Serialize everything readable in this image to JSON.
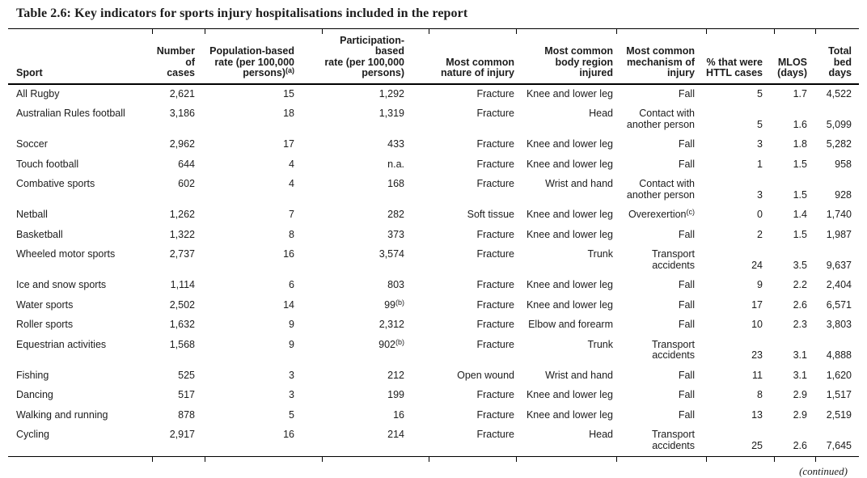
{
  "title": "Table 2.6: Key indicators for sports injury hospitalisations included in the report",
  "continued_note": "(continued)",
  "colors": {
    "background": "#ffffff",
    "text": "#1c1c1c",
    "rule": "#000000"
  },
  "table": {
    "columns": [
      {
        "id": "sport",
        "label": "Sport"
      },
      {
        "id": "cases",
        "label": "Number\nof\ncases"
      },
      {
        "id": "population-rate",
        "label": "Population-based\nrate (per 100,000\npersons)^(a)"
      },
      {
        "id": "participation-rate",
        "label": "Participation-based\nrate (per 100,000\npersons)"
      },
      {
        "id": "nature",
        "label": "Most common\nnature of injury"
      },
      {
        "id": "body-region",
        "label": "Most common\nbody region\ninjured"
      },
      {
        "id": "mechanism",
        "label": "Most common\nmechanism of\ninjury"
      },
      {
        "id": "httl-pct",
        "label": "% that were\nHTTL cases"
      },
      {
        "id": "mlos",
        "label": "MLOS\n(days)"
      },
      {
        "id": "total-bed-days",
        "label": "Total\nbed\ndays"
      }
    ],
    "rows": [
      [
        "All Rugby",
        "2,621",
        "15",
        "1,292",
        "Fracture",
        "Knee and lower leg",
        "Fall",
        "5",
        "1.7",
        "4,522"
      ],
      [
        "Australian Rules football",
        "3,186",
        "18",
        "1,319",
        "Fracture",
        "Head",
        "Contact with\nanother person",
        "5",
        "1.6",
        "5,099"
      ],
      [
        "Soccer",
        "2,962",
        "17",
        "433",
        "Fracture",
        "Knee and lower leg",
        "Fall",
        "3",
        "1.8",
        "5,282"
      ],
      [
        "Touch football",
        "644",
        "4",
        "n.a.",
        "Fracture",
        "Knee and lower leg",
        "Fall",
        "1",
        "1.5",
        "958"
      ],
      [
        "Combative sports",
        "602",
        "4",
        "168",
        "Fracture",
        "Wrist and hand",
        "Contact with\nanother person",
        "3",
        "1.5",
        "928"
      ],
      [
        "Netball",
        "1,262",
        "7",
        "282",
        "Soft tissue",
        "Knee and lower leg",
        "Overexertion^(c)",
        "0",
        "1.4",
        "1,740"
      ],
      [
        "Basketball",
        "1,322",
        "8",
        "373",
        "Fracture",
        "Knee and lower leg",
        "Fall",
        "2",
        "1.5",
        "1,987"
      ],
      [
        "Wheeled motor sports",
        "2,737",
        "16",
        "3,574",
        "Fracture",
        "Trunk",
        "Transport\naccidents",
        "24",
        "3.5",
        "9,637"
      ],
      [
        "Ice and snow sports",
        "1,114",
        "6",
        "803",
        "Fracture",
        "Knee and lower leg",
        "Fall",
        "9",
        "2.2",
        "2,404"
      ],
      [
        "Water sports",
        "2,502",
        "14",
        "99^(b)",
        "Fracture",
        "Knee and lower leg",
        "Fall",
        "17",
        "2.6",
        "6,571"
      ],
      [
        "Roller sports",
        "1,632",
        "9",
        "2,312",
        "Fracture",
        "Elbow and forearm",
        "Fall",
        "10",
        "2.3",
        "3,803"
      ],
      [
        "Equestrian activities",
        "1,568",
        "9",
        "902^(b)",
        "Fracture",
        "Trunk",
        "Transport\naccidents",
        "23",
        "3.1",
        "4,888"
      ],
      [
        "Fishing",
        "525",
        "3",
        "212",
        "Open wound",
        "Wrist and hand",
        "Fall",
        "11",
        "3.1",
        "1,620"
      ],
      [
        "Dancing",
        "517",
        "3",
        "199",
        "Fracture",
        "Knee and lower leg",
        "Fall",
        "8",
        "2.9",
        "1,517"
      ],
      [
        "Walking and running",
        "878",
        "5",
        "16",
        "Fracture",
        "Knee and lower leg",
        "Fall",
        "13",
        "2.9",
        "2,519"
      ],
      [
        "Cycling",
        "2,917",
        "16",
        "214",
        "Fracture",
        "Head",
        "Transport\naccidents",
        "25",
        "2.6",
        "7,645"
      ]
    ]
  }
}
